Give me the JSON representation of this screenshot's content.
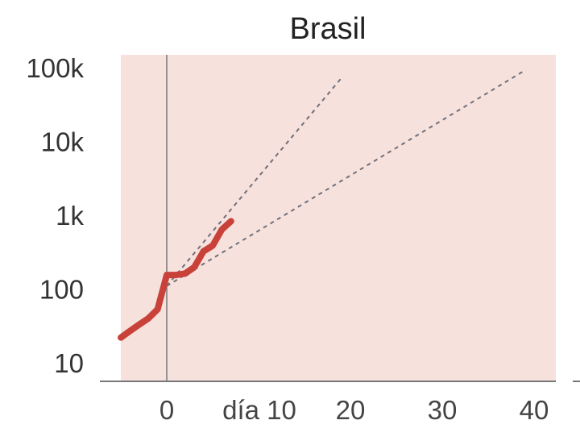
{
  "chart_data": {
    "type": "line",
    "title": "Brasil",
    "xlabel": "",
    "ylabel": "",
    "y_scale": "log",
    "xlim": [
      -5,
      42
    ],
    "ylim": [
      5,
      130000
    ],
    "y_ticks": [
      {
        "value": 10,
        "label": "10"
      },
      {
        "value": 100,
        "label": "100"
      },
      {
        "value": 1000,
        "label": "1k"
      },
      {
        "value": 10000,
        "label": "10k"
      },
      {
        "value": 100000,
        "label": "100k"
      }
    ],
    "x_ticks": [
      {
        "value": 0,
        "label": "0"
      },
      {
        "value": 10,
        "label": "día 10"
      },
      {
        "value": 20,
        "label": "20"
      },
      {
        "value": 30,
        "label": "30"
      },
      {
        "value": 40,
        "label": "40"
      }
    ],
    "reference_day": 0,
    "series": [
      {
        "x": [
          -5,
          -4,
          -3,
          -2,
          -1,
          0,
          1,
          2,
          3,
          4,
          5,
          6,
          7
        ],
        "y": [
          22,
          27,
          33,
          40,
          53,
          155,
          155,
          162,
          198,
          325,
          387,
          640,
          830
        ]
      }
    ],
    "guide_lines": [
      {
        "x": [
          0,
          19
        ],
        "y": [
          110,
          72000
        ]
      },
      {
        "x": [
          0,
          39
        ],
        "y": [
          110,
          92000
        ]
      }
    ],
    "colors": {
      "plot_background": "#f7e1dc",
      "series": "#c8423a",
      "guide": "#6f6f7a",
      "axis": "#777777"
    }
  }
}
